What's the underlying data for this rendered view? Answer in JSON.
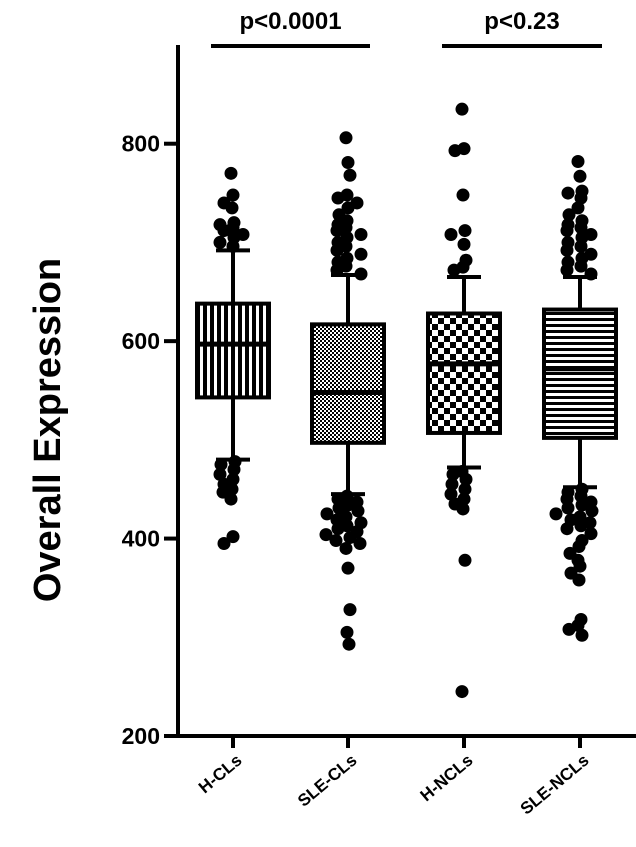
{
  "chart_data": {
    "type": "box",
    "title": "",
    "ylabel": "Overall Expression",
    "xlabel": "",
    "ylim": [
      200,
      900
    ],
    "yticks": [
      200,
      400,
      600,
      800
    ],
    "grid": false,
    "legend": "none",
    "categories": [
      "H-CLs",
      "SLE-CLs",
      "H-NCLs",
      "SLE-NCLs"
    ],
    "boxes": [
      {
        "name": "H-CLs",
        "pattern": "vertical-stripes",
        "whisker_low": 480,
        "q1": 543,
        "median": 597,
        "q3": 638,
        "whisker_high": 692,
        "outliers": [
          770,
          748,
          740,
          735,
          720,
          718,
          715,
          712,
          708,
          705,
          700,
          696,
          478,
          475,
          470,
          465,
          460,
          455,
          450,
          447,
          440,
          402,
          395
        ]
      },
      {
        "name": "SLE-CLs",
        "pattern": "checker-fine",
        "whisker_low": 445,
        "q1": 497,
        "median": 548,
        "q3": 617,
        "whisker_high": 667,
        "outliers": [
          806,
          781,
          768,
          748,
          745,
          740,
          735,
          728,
          722,
          718,
          715,
          712,
          708,
          705,
          700,
          696,
          692,
          688,
          684,
          680,
          676,
          672,
          668,
          443,
          440,
          437,
          434,
          431,
          428,
          425,
          422,
          419,
          416,
          413,
          410,
          407,
          404,
          401,
          398,
          395,
          390,
          370,
          328,
          305,
          293
        ]
      },
      {
        "name": "H-NCLs",
        "pattern": "checkerboard",
        "whisker_low": 472,
        "q1": 507,
        "median": 577,
        "q3": 628,
        "whisker_high": 665,
        "outliers": [
          835,
          795,
          793,
          748,
          712,
          708,
          698,
          682,
          675,
          672,
          468,
          465,
          460,
          455,
          450,
          445,
          440,
          435,
          430,
          378,
          245
        ]
      },
      {
        "name": "SLE-NCLs",
        "pattern": "horizontal-stripes",
        "whisker_low": 452,
        "q1": 502,
        "median": 572,
        "q3": 632,
        "whisker_high": 665,
        "outliers": [
          782,
          767,
          752,
          750,
          745,
          735,
          728,
          722,
          718,
          715,
          712,
          708,
          705,
          700,
          696,
          692,
          688,
          684,
          680,
          676,
          672,
          668,
          450,
          447,
          443,
          440,
          437,
          434,
          431,
          428,
          425,
          422,
          419,
          416,
          413,
          410,
          405,
          398,
          392,
          385,
          378,
          372,
          365,
          358,
          318,
          312,
          308,
          302
        ]
      }
    ],
    "annotations": [
      {
        "text": "p<0.0001",
        "from": 0,
        "to": 1
      },
      {
        "text": "p<0.23",
        "from": 2,
        "to": 3
      }
    ]
  }
}
